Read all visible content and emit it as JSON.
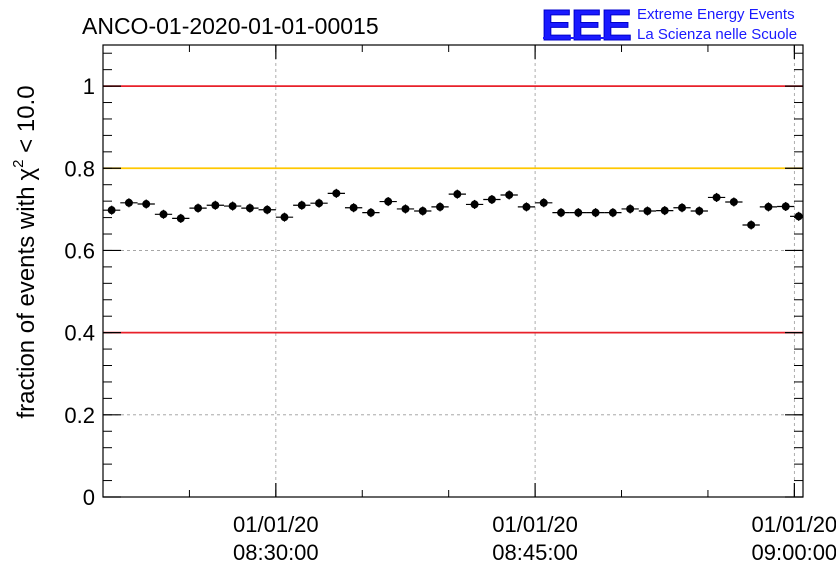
{
  "chart_data": {
    "type": "scatter",
    "title": "ANCO-01-2020-01-01-00015",
    "ylabel": "fraction of events with",
    "ylabel_suffix": " < 10.0",
    "ylabel_symbol": "χ",
    "ylabel_sup": "2",
    "ylim": [
      0,
      1.1
    ],
    "xlim": [
      "08:20:00",
      "09:00:30"
    ],
    "x_ticks": [
      {
        "date": "01/01/20",
        "time": "08:30:00"
      },
      {
        "date": "01/01/20",
        "time": "08:45:00"
      },
      {
        "date": "01/01/20",
        "time": "09:00:00"
      }
    ],
    "y_ticks": [
      "0",
      "0.2",
      "0.4",
      "0.6",
      "0.8",
      "1"
    ],
    "reference_lines": [
      {
        "y": 1.0,
        "color": "#e8202a"
      },
      {
        "y": 0.8,
        "color": "#ffc800"
      },
      {
        "y": 0.4,
        "color": "#e8202a"
      }
    ],
    "grid": true,
    "bin_minutes": 1,
    "x": [
      "08:20:30",
      "08:21:30",
      "08:22:30",
      "08:23:30",
      "08:24:30",
      "08:25:30",
      "08:26:30",
      "08:27:30",
      "08:28:30",
      "08:29:30",
      "08:30:30",
      "08:31:30",
      "08:32:30",
      "08:33:30",
      "08:34:30",
      "08:35:30",
      "08:36:30",
      "08:37:30",
      "08:38:30",
      "08:39:30",
      "08:40:30",
      "08:41:30",
      "08:42:30",
      "08:43:30",
      "08:44:30",
      "08:45:30",
      "08:46:30",
      "08:47:30",
      "08:48:30",
      "08:49:30",
      "08:50:30",
      "08:51:30",
      "08:52:30",
      "08:53:30",
      "08:54:30",
      "08:55:30",
      "08:56:30",
      "08:57:30",
      "08:58:30",
      "08:59:30",
      "09:00:15"
    ],
    "y": [
      0.698,
      0.716,
      0.713,
      0.688,
      0.678,
      0.703,
      0.71,
      0.708,
      0.703,
      0.699,
      0.681,
      0.71,
      0.715,
      0.739,
      0.704,
      0.692,
      0.719,
      0.701,
      0.696,
      0.706,
      0.737,
      0.712,
      0.724,
      0.735,
      0.706,
      0.716,
      0.692,
      0.692,
      0.692,
      0.692,
      0.701,
      0.696,
      0.697,
      0.704,
      0.696,
      0.729,
      0.718,
      0.662,
      0.706,
      0.707,
      0.683
    ],
    "yerr": 0.011
  },
  "logo": {
    "mark": "EEE",
    "line1": "Extreme Energy Events",
    "line2": "La Scienza nelle Scuole",
    "color": "#1a1aff"
  },
  "colors": {
    "marker": "#000000",
    "grid": "#9a9a9a"
  }
}
